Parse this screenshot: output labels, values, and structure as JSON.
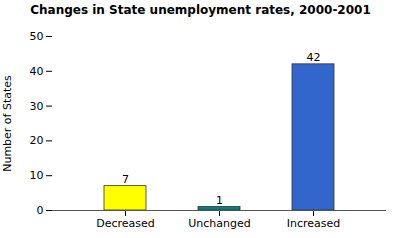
{
  "chart_data": {
    "type": "bar",
    "title": "Changes in State unemployment rates, 2000-2001",
    "categories": [
      "Decreased",
      "Unchanged",
      "Increased"
    ],
    "values": [
      7,
      1,
      42
    ],
    "colors": [
      "#FFFF00",
      "#008080",
      "#3366CC"
    ],
    "ylabel": "Number of States",
    "ylim": [
      0,
      50
    ],
    "yticks": [
      0,
      10,
      20,
      30,
      40,
      50
    ],
    "grid": false,
    "data_labels": true
  }
}
